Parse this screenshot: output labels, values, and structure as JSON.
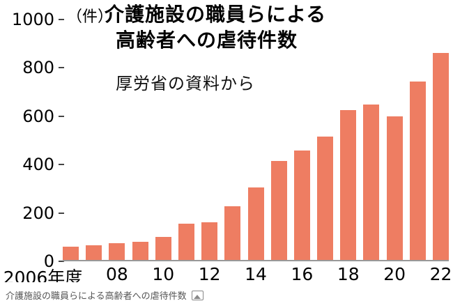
{
  "chart_data": {
    "type": "bar",
    "unit_label": "（件）",
    "title_line1": "介護施設の職員らによる",
    "title_line2": "高齢者への虐待件数",
    "subtitle": "厚労省の資料から",
    "categories": [
      "2006",
      "2007",
      "2008",
      "2009",
      "2010",
      "2011",
      "2012",
      "2013",
      "2014",
      "2015",
      "2016",
      "2017",
      "2018",
      "2019",
      "2020",
      "2021",
      "2022"
    ],
    "values": [
      54,
      62,
      70,
      76,
      96,
      151,
      155,
      221,
      300,
      408,
      452,
      510,
      621,
      644,
      595,
      739,
      856
    ],
    "y_ticks": [
      0,
      200,
      400,
      600,
      800,
      1000
    ],
    "ylim": [
      0,
      1000
    ],
    "xlabel": "",
    "ylabel": "件",
    "grid": false,
    "legend": false,
    "bar_color": "#ee7d62",
    "x_labels": [
      {
        "index": 0,
        "text": "2006年度",
        "dx": -40
      },
      {
        "index": 2,
        "text": "08",
        "dx": 0
      },
      {
        "index": 4,
        "text": "10",
        "dx": 0
      },
      {
        "index": 6,
        "text": "12",
        "dx": 0
      },
      {
        "index": 8,
        "text": "14",
        "dx": 0
      },
      {
        "index": 10,
        "text": "16",
        "dx": 0
      },
      {
        "index": 12,
        "text": "18",
        "dx": 0
      },
      {
        "index": 14,
        "text": "20",
        "dx": 0
      },
      {
        "index": 16,
        "text": "22",
        "dx": 0
      }
    ]
  },
  "caption": {
    "text": "介護施設の職員らによる高齢者への虐待件数"
  }
}
